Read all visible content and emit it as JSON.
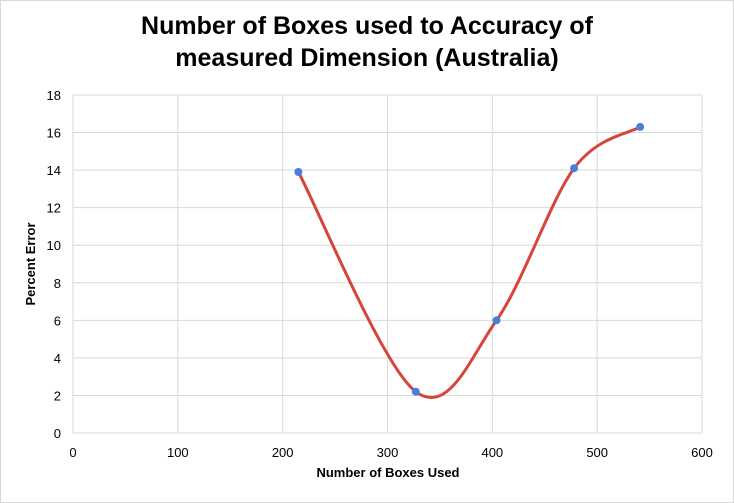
{
  "chart_data": {
    "type": "scatter",
    "title_line1": "Number of Boxes used to Accuracy of",
    "title_line2": "measured Dimension (Australia)",
    "xlabel": "Number of Boxes Used",
    "ylabel": "Percent Error",
    "xlim": [
      0,
      600
    ],
    "ylim": [
      0,
      18
    ],
    "xticks": [
      0,
      100,
      200,
      300,
      400,
      500,
      600
    ],
    "yticks": [
      0,
      2,
      4,
      6,
      8,
      10,
      12,
      14,
      16,
      18
    ],
    "grid": true,
    "legend": "none",
    "smooth_line": true,
    "series": [
      {
        "points": [
          {
            "x": 215,
            "y": 13.9
          },
          {
            "x": 327,
            "y": 2.2
          },
          {
            "x": 404,
            "y": 6.0
          },
          {
            "x": 478,
            "y": 14.1
          },
          {
            "x": 541,
            "y": 16.3
          }
        ],
        "marker_color": "#4a7fe0",
        "line_color": "#d6453a"
      }
    ]
  }
}
